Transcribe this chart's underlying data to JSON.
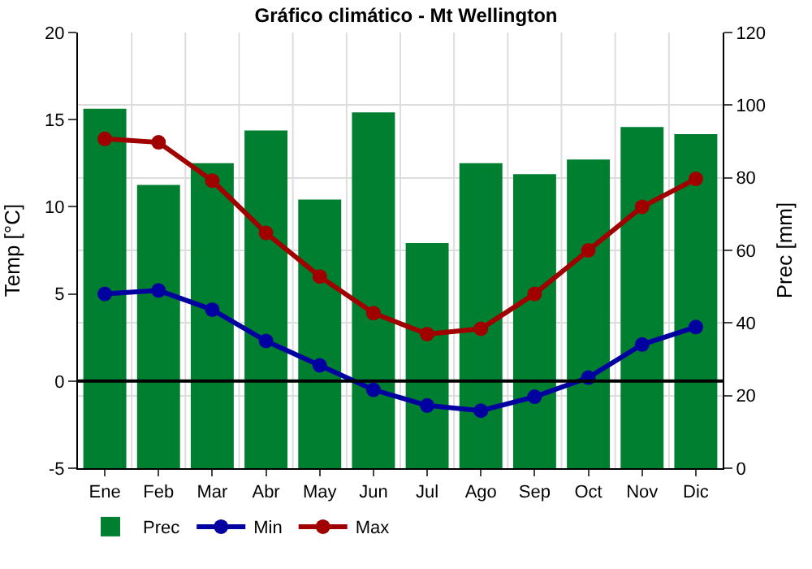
{
  "chart_data": {
    "type": "bar",
    "title": "Gráfico climático - Mt Wellington",
    "ylabel": "Temp [°C]",
    "y2label": "Prec [mm]",
    "categories": [
      "Ene",
      "Feb",
      "Mar",
      "Abr",
      "May",
      "Jun",
      "Jul",
      "Ago",
      "Sep",
      "Oct",
      "Nov",
      "Dic"
    ],
    "series": [
      {
        "name": "Prec",
        "axis": "y2",
        "color": "#007f31",
        "values": [
          99,
          78,
          84,
          93,
          74,
          98,
          62,
          84,
          81,
          85,
          94,
          92
        ]
      },
      {
        "name": "Min",
        "type": "line",
        "axis": "y",
        "color": "#0000a0",
        "values": [
          5,
          5.2,
          4.1,
          2.3,
          0.9,
          -0.5,
          -1.4,
          -1.7,
          -0.9,
          0.2,
          2.1,
          3.1
        ]
      },
      {
        "name": "Max",
        "type": "line",
        "axis": "y",
        "color": "#a00000",
        "values": [
          13.9,
          13.7,
          11.5,
          8.5,
          6,
          3.9,
          2.7,
          3,
          5,
          7.5,
          10,
          11.6
        ]
      }
    ],
    "ylim": [
      -5,
      20
    ],
    "yticks": [
      -5,
      0,
      5,
      10,
      15,
      20
    ],
    "y2lim": [
      0,
      120
    ],
    "y2ticks": [
      0,
      20,
      40,
      60,
      80,
      100,
      120
    ],
    "ref_lines": [
      {
        "axis": "y",
        "value": 0,
        "color": "#000000"
      }
    ],
    "grid": true,
    "legend": "bottom left",
    "marker": "circle",
    "line_style": "solid"
  }
}
